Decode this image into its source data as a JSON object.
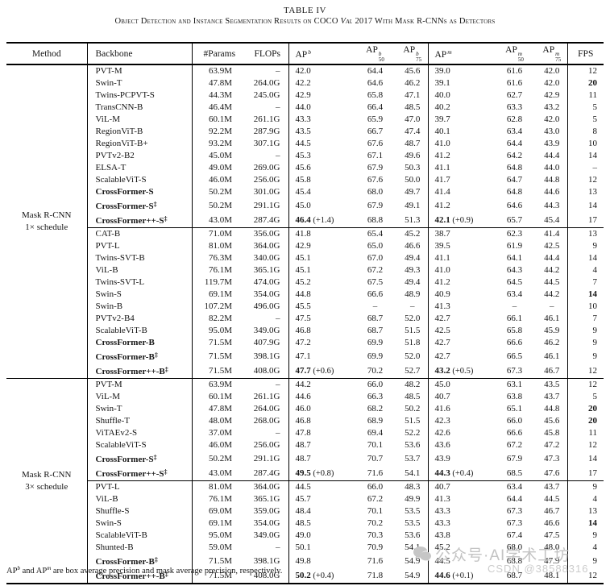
{
  "title": "TABLE IV",
  "subtitle": {
    "pre": "Object Detection and Instance Segmentation Results on COCO ",
    "italic": "Val",
    "post": " 2017 With Mask R-CNNs as Detectors"
  },
  "table": {
    "columns": [
      {
        "key": "method",
        "label": "Method"
      },
      {
        "key": "backbone",
        "label": "Backbone"
      },
      {
        "key": "params",
        "label": "#Params"
      },
      {
        "key": "flops",
        "label": "FLOPs"
      },
      {
        "key": "apb",
        "label": "AP",
        "sup": "b"
      },
      {
        "key": "apb50",
        "label": "AP",
        "sup": "b",
        "sub": "50"
      },
      {
        "key": "apb75",
        "label": "AP",
        "sup": "b",
        "sub": "75"
      },
      {
        "key": "apm",
        "label": "AP",
        "sup": "m"
      },
      {
        "key": "apm50",
        "label": "AP",
        "sup": "m",
        "sub": "50"
      },
      {
        "key": "apm75",
        "label": "AP",
        "sup": "m",
        "sub": "75"
      },
      {
        "key": "fps",
        "label": "FPS"
      }
    ],
    "dagger_symbol": "‡",
    "row_fields": [
      "backbone",
      "backbone_bold",
      "dagger",
      "params",
      "flops",
      "apb",
      "apb_delta",
      "apb_bold",
      "apb50",
      "apb75",
      "apm",
      "apm_delta",
      "apm_bold",
      "apm50",
      "apm75",
      "fps",
      "fps_bold"
    ],
    "groups": [
      {
        "method_lines": [
          "Mask R-CNN",
          "1× schedule"
        ],
        "subblocks": [
          [
            [
              "PVT-M",
              0,
              0,
              "63.9M",
              "–",
              "42.0",
              "",
              0,
              "64.4",
              "45.6",
              "39.0",
              "",
              0,
              "61.6",
              "42.0",
              "12",
              0
            ],
            [
              "Swin-T",
              0,
              0,
              "47.8M",
              "264.0G",
              "42.2",
              "",
              0,
              "64.6",
              "46.2",
              "39.1",
              "",
              0,
              "61.6",
              "42.0",
              "20",
              1
            ],
            [
              "Twins-PCPVT-S",
              0,
              0,
              "44.3M",
              "245.0G",
              "42.9",
              "",
              0,
              "65.8",
              "47.1",
              "40.0",
              "",
              0,
              "62.7",
              "42.9",
              "11",
              0
            ],
            [
              "TransCNN-B",
              0,
              0,
              "46.4M",
              "–",
              "44.0",
              "",
              0,
              "66.4",
              "48.5",
              "40.2",
              "",
              0,
              "63.3",
              "43.2",
              "5",
              0
            ],
            [
              "ViL-M",
              0,
              0,
              "60.1M",
              "261.1G",
              "43.3",
              "",
              0,
              "65.9",
              "47.0",
              "39.7",
              "",
              0,
              "62.8",
              "42.0",
              "5",
              0
            ],
            [
              "RegionViT-B",
              0,
              0,
              "92.2M",
              "287.9G",
              "43.5",
              "",
              0,
              "66.7",
              "47.4",
              "40.1",
              "",
              0,
              "63.4",
              "43.0",
              "8",
              0
            ],
            [
              "RegionViT-B+",
              0,
              0,
              "93.2M",
              "307.1G",
              "44.5",
              "",
              0,
              "67.6",
              "48.7",
              "41.0",
              "",
              0,
              "64.4",
              "43.9",
              "10",
              0
            ],
            [
              "PVTv2-B2",
              0,
              0,
              "45.0M",
              "–",
              "45.3",
              "",
              0,
              "67.1",
              "49.6",
              "41.2",
              "",
              0,
              "64.2",
              "44.4",
              "14",
              0
            ],
            [
              "ELSA-T",
              0,
              0,
              "49.0M",
              "269.0G",
              "45.6",
              "",
              0,
              "67.9",
              "50.3",
              "41.1",
              "",
              0,
              "64.8",
              "44.0",
              "–",
              0
            ],
            [
              "ScalableViT-S",
              0,
              0,
              "46.0M",
              "256.0G",
              "45.8",
              "",
              0,
              "67.6",
              "50.0",
              "41.7",
              "",
              0,
              "64.7",
              "44.8",
              "12",
              0
            ],
            [
              "CrossFormer-S",
              1,
              0,
              "50.2M",
              "301.0G",
              "45.4",
              "",
              0,
              "68.0",
              "49.7",
              "41.4",
              "",
              0,
              "64.8",
              "44.6",
              "13",
              0
            ],
            [
              "CrossFormer-S",
              1,
              1,
              "50.2M",
              "291.1G",
              "45.0",
              "",
              0,
              "67.9",
              "49.1",
              "41.2",
              "",
              0,
              "64.6",
              "44.3",
              "14",
              0
            ],
            [
              "CrossFormer++-S",
              1,
              1,
              "43.0M",
              "287.4G",
              "46.4",
              "(+1.4)",
              1,
              "68.8",
              "51.3",
              "42.1",
              "(+0.9)",
              1,
              "65.7",
              "45.4",
              "17",
              0
            ]
          ],
          [
            [
              "CAT-B",
              0,
              0,
              "71.0M",
              "356.0G",
              "41.8",
              "",
              0,
              "65.4",
              "45.2",
              "38.7",
              "",
              0,
              "62.3",
              "41.4",
              "13",
              0
            ],
            [
              "PVT-L",
              0,
              0,
              "81.0M",
              "364.0G",
              "42.9",
              "",
              0,
              "65.0",
              "46.6",
              "39.5",
              "",
              0,
              "61.9",
              "42.5",
              "9",
              0
            ],
            [
              "Twins-SVT-B",
              0,
              0,
              "76.3M",
              "340.0G",
              "45.1",
              "",
              0,
              "67.0",
              "49.4",
              "41.1",
              "",
              0,
              "64.1",
              "44.4",
              "14",
              0
            ],
            [
              "ViL-B",
              0,
              0,
              "76.1M",
              "365.1G",
              "45.1",
              "",
              0,
              "67.2",
              "49.3",
              "41.0",
              "",
              0,
              "64.3",
              "44.2",
              "4",
              0
            ],
            [
              "Twins-SVT-L",
              0,
              0,
              "119.7M",
              "474.0G",
              "45.2",
              "",
              0,
              "67.5",
              "49.4",
              "41.2",
              "",
              0,
              "64.5",
              "44.5",
              "7",
              0
            ],
            [
              "Swin-S",
              0,
              0,
              "69.1M",
              "354.0G",
              "44.8",
              "",
              0,
              "66.6",
              "48.9",
              "40.9",
              "",
              0,
              "63.4",
              "44.2",
              "14",
              1
            ],
            [
              "Swin-B",
              0,
              0,
              "107.2M",
              "496.0G",
              "45.5",
              "",
              0,
              "–",
              "–",
              "41.3",
              "",
              0,
              "–",
              "–",
              "10",
              0
            ],
            [
              "PVTv2-B4",
              0,
              0,
              "82.2M",
              "–",
              "47.5",
              "",
              0,
              "68.7",
              "52.0",
              "42.7",
              "",
              0,
              "66.1",
              "46.1",
              "7",
              0
            ],
            [
              "ScalableViT-B",
              0,
              0,
              "95.0M",
              "349.0G",
              "46.8",
              "",
              0,
              "68.7",
              "51.5",
              "42.5",
              "",
              0,
              "65.8",
              "45.9",
              "9",
              0
            ],
            [
              "CrossFormer-B",
              1,
              0,
              "71.5M",
              "407.9G",
              "47.2",
              "",
              0,
              "69.9",
              "51.8",
              "42.7",
              "",
              0,
              "66.6",
              "46.2",
              "9",
              0
            ],
            [
              "CrossFormer-B",
              1,
              1,
              "71.5M",
              "398.1G",
              "47.1",
              "",
              0,
              "69.9",
              "52.0",
              "42.7",
              "",
              0,
              "66.5",
              "46.1",
              "9",
              0
            ],
            [
              "CrossFormer++-B",
              1,
              1,
              "71.5M",
              "408.0G",
              "47.7",
              "(+0.6)",
              1,
              "70.2",
              "52.7",
              "43.2",
              "(+0.5)",
              1,
              "67.3",
              "46.7",
              "12",
              0
            ]
          ]
        ]
      },
      {
        "method_lines": [
          "Mask R-CNN",
          "3× schedule"
        ],
        "subblocks": [
          [
            [
              "PVT-M",
              0,
              0,
              "63.9M",
              "–",
              "44.2",
              "",
              0,
              "66.0",
              "48.2",
              "45.0",
              "",
              0,
              "63.1",
              "43.5",
              "12",
              0
            ],
            [
              "ViL-M",
              0,
              0,
              "60.1M",
              "261.1G",
              "44.6",
              "",
              0,
              "66.3",
              "48.5",
              "40.7",
              "",
              0,
              "63.8",
              "43.7",
              "5",
              0
            ],
            [
              "Swin-T",
              0,
              0,
              "47.8M",
              "264.0G",
              "46.0",
              "",
              0,
              "68.2",
              "50.2",
              "41.6",
              "",
              0,
              "65.1",
              "44.8",
              "20",
              1
            ],
            [
              "Shuffle-T",
              0,
              0,
              "48.0M",
              "268.0G",
              "46.8",
              "",
              0,
              "68.9",
              "51.5",
              "42.3",
              "",
              0,
              "66.0",
              "45.6",
              "20",
              1
            ],
            [
              "ViTAEv2-S",
              0,
              0,
              "37.0M",
              "–",
              "47.8",
              "",
              0,
              "69.4",
              "52.2",
              "42.6",
              "",
              0,
              "66.6",
              "45.8",
              "11",
              0
            ],
            [
              "ScalableViT-S",
              0,
              0,
              "46.0M",
              "256.0G",
              "48.7",
              "",
              0,
              "70.1",
              "53.6",
              "43.6",
              "",
              0,
              "67.2",
              "47.2",
              "12",
              0
            ],
            [
              "CrossFormer-S",
              1,
              1,
              "50.2M",
              "291.1G",
              "48.7",
              "",
              0,
              "70.7",
              "53.7",
              "43.9",
              "",
              0,
              "67.9",
              "47.3",
              "14",
              0
            ],
            [
              "CrossFormer++-S",
              1,
              1,
              "43.0M",
              "287.4G",
              "49.5",
              "(+0.8)",
              1,
              "71.6",
              "54.1",
              "44.3",
              "(+0.4)",
              1,
              "68.5",
              "47.6",
              "17",
              0
            ]
          ],
          [
            [
              "PVT-L",
              0,
              0,
              "81.0M",
              "364.0G",
              "44.5",
              "",
              0,
              "66.0",
              "48.3",
              "40.7",
              "",
              0,
              "63.4",
              "43.7",
              "9",
              0
            ],
            [
              "ViL-B",
              0,
              0,
              "76.1M",
              "365.1G",
              "45.7",
              "",
              0,
              "67.2",
              "49.9",
              "41.3",
              "",
              0,
              "64.4",
              "44.5",
              "4",
              0
            ],
            [
              "Shuffle-S",
              0,
              0,
              "69.0M",
              "359.0G",
              "48.4",
              "",
              0,
              "70.1",
              "53.5",
              "43.3",
              "",
              0,
              "67.3",
              "46.7",
              "13",
              0
            ],
            [
              "Swin-S",
              0,
              0,
              "69.1M",
              "354.0G",
              "48.5",
              "",
              0,
              "70.2",
              "53.5",
              "43.3",
              "",
              0,
              "67.3",
              "46.6",
              "14",
              1
            ],
            [
              "ScalableViT-B",
              0,
              0,
              "95.0M",
              "349.0G",
              "49.0",
              "",
              0,
              "70.3",
              "53.6",
              "43.8",
              "",
              0,
              "67.4",
              "47.5",
              "9",
              0
            ],
            [
              "Shunted-B",
              0,
              0,
              "59.0M",
              "–",
              "50.1",
              "",
              0,
              "70.9",
              "54.1",
              "45.2",
              "",
              0,
              "68.0",
              "48.0",
              "4",
              0
            ],
            [
              "CrossFormer-B",
              1,
              1,
              "71.5M",
              "398.1G",
              "49.8",
              "",
              0,
              "71.6",
              "54.9",
              "44.5",
              "",
              0,
              "68.8",
              "47.9",
              "9",
              0
            ],
            [
              "CrossFormer++-B",
              1,
              1,
              "71.5M",
              "408.0G",
              "50.2",
              "(+0.4)",
              1,
              "71.8",
              "54.9",
              "44.6",
              "(+0.1)",
              1,
              "68.7",
              "48.1",
              "12",
              0
            ]
          ]
        ]
      }
    ]
  },
  "footnote": {
    "p1": "AP",
    "s1": "b",
    "p2": " and AP",
    "s2": "m",
    "p3": " are box average precision and mask average precision, respectively."
  },
  "watermarks": {
    "wechat_text": "公众号·AI学术工坊",
    "csdn_text": "CSDN @38588316"
  }
}
